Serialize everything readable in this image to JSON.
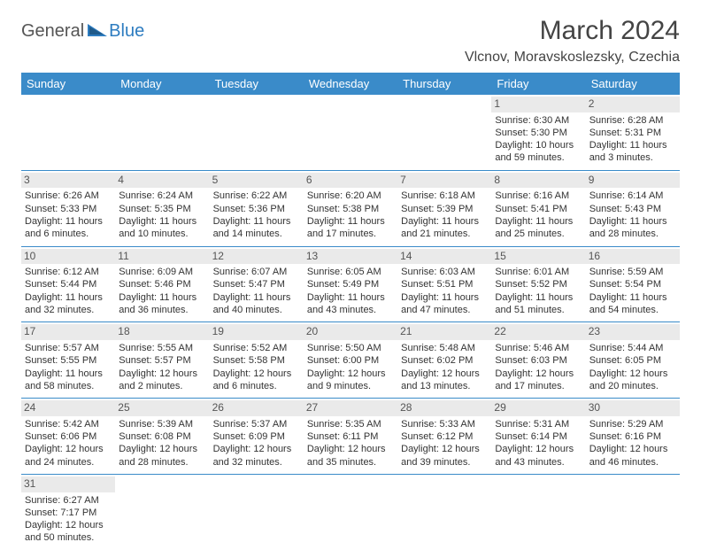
{
  "logo": {
    "text_dark": "General",
    "text_blue": "Blue"
  },
  "title": "March 2024",
  "location": "Vlcnov, Moravskoslezsky, Czechia",
  "colors": {
    "header_bg": "#3a8bc9",
    "header_fg": "#ffffff",
    "daynum_bg": "#eaeaea",
    "row_border": "#3a8bc9",
    "logo_dark": "#555555",
    "logo_blue": "#2d7cc0"
  },
  "typography": {
    "title_fontsize": 30,
    "location_fontsize": 16,
    "dayheader_fontsize": 13,
    "cell_fontsize": 11
  },
  "day_headers": [
    "Sunday",
    "Monday",
    "Tuesday",
    "Wednesday",
    "Thursday",
    "Friday",
    "Saturday"
  ],
  "weeks": [
    [
      {
        "n": "",
        "sr": "",
        "ss": "",
        "dl1": "",
        "dl2": ""
      },
      {
        "n": "",
        "sr": "",
        "ss": "",
        "dl1": "",
        "dl2": ""
      },
      {
        "n": "",
        "sr": "",
        "ss": "",
        "dl1": "",
        "dl2": ""
      },
      {
        "n": "",
        "sr": "",
        "ss": "",
        "dl1": "",
        "dl2": ""
      },
      {
        "n": "",
        "sr": "",
        "ss": "",
        "dl1": "",
        "dl2": ""
      },
      {
        "n": "1",
        "sr": "Sunrise: 6:30 AM",
        "ss": "Sunset: 5:30 PM",
        "dl1": "Daylight: 10 hours",
        "dl2": "and 59 minutes."
      },
      {
        "n": "2",
        "sr": "Sunrise: 6:28 AM",
        "ss": "Sunset: 5:31 PM",
        "dl1": "Daylight: 11 hours",
        "dl2": "and 3 minutes."
      }
    ],
    [
      {
        "n": "3",
        "sr": "Sunrise: 6:26 AM",
        "ss": "Sunset: 5:33 PM",
        "dl1": "Daylight: 11 hours",
        "dl2": "and 6 minutes."
      },
      {
        "n": "4",
        "sr": "Sunrise: 6:24 AM",
        "ss": "Sunset: 5:35 PM",
        "dl1": "Daylight: 11 hours",
        "dl2": "and 10 minutes."
      },
      {
        "n": "5",
        "sr": "Sunrise: 6:22 AM",
        "ss": "Sunset: 5:36 PM",
        "dl1": "Daylight: 11 hours",
        "dl2": "and 14 minutes."
      },
      {
        "n": "6",
        "sr": "Sunrise: 6:20 AM",
        "ss": "Sunset: 5:38 PM",
        "dl1": "Daylight: 11 hours",
        "dl2": "and 17 minutes."
      },
      {
        "n": "7",
        "sr": "Sunrise: 6:18 AM",
        "ss": "Sunset: 5:39 PM",
        "dl1": "Daylight: 11 hours",
        "dl2": "and 21 minutes."
      },
      {
        "n": "8",
        "sr": "Sunrise: 6:16 AM",
        "ss": "Sunset: 5:41 PM",
        "dl1": "Daylight: 11 hours",
        "dl2": "and 25 minutes."
      },
      {
        "n": "9",
        "sr": "Sunrise: 6:14 AM",
        "ss": "Sunset: 5:43 PM",
        "dl1": "Daylight: 11 hours",
        "dl2": "and 28 minutes."
      }
    ],
    [
      {
        "n": "10",
        "sr": "Sunrise: 6:12 AM",
        "ss": "Sunset: 5:44 PM",
        "dl1": "Daylight: 11 hours",
        "dl2": "and 32 minutes."
      },
      {
        "n": "11",
        "sr": "Sunrise: 6:09 AM",
        "ss": "Sunset: 5:46 PM",
        "dl1": "Daylight: 11 hours",
        "dl2": "and 36 minutes."
      },
      {
        "n": "12",
        "sr": "Sunrise: 6:07 AM",
        "ss": "Sunset: 5:47 PM",
        "dl1": "Daylight: 11 hours",
        "dl2": "and 40 minutes."
      },
      {
        "n": "13",
        "sr": "Sunrise: 6:05 AM",
        "ss": "Sunset: 5:49 PM",
        "dl1": "Daylight: 11 hours",
        "dl2": "and 43 minutes."
      },
      {
        "n": "14",
        "sr": "Sunrise: 6:03 AM",
        "ss": "Sunset: 5:51 PM",
        "dl1": "Daylight: 11 hours",
        "dl2": "and 47 minutes."
      },
      {
        "n": "15",
        "sr": "Sunrise: 6:01 AM",
        "ss": "Sunset: 5:52 PM",
        "dl1": "Daylight: 11 hours",
        "dl2": "and 51 minutes."
      },
      {
        "n": "16",
        "sr": "Sunrise: 5:59 AM",
        "ss": "Sunset: 5:54 PM",
        "dl1": "Daylight: 11 hours",
        "dl2": "and 54 minutes."
      }
    ],
    [
      {
        "n": "17",
        "sr": "Sunrise: 5:57 AM",
        "ss": "Sunset: 5:55 PM",
        "dl1": "Daylight: 11 hours",
        "dl2": "and 58 minutes."
      },
      {
        "n": "18",
        "sr": "Sunrise: 5:55 AM",
        "ss": "Sunset: 5:57 PM",
        "dl1": "Daylight: 12 hours",
        "dl2": "and 2 minutes."
      },
      {
        "n": "19",
        "sr": "Sunrise: 5:52 AM",
        "ss": "Sunset: 5:58 PM",
        "dl1": "Daylight: 12 hours",
        "dl2": "and 6 minutes."
      },
      {
        "n": "20",
        "sr": "Sunrise: 5:50 AM",
        "ss": "Sunset: 6:00 PM",
        "dl1": "Daylight: 12 hours",
        "dl2": "and 9 minutes."
      },
      {
        "n": "21",
        "sr": "Sunrise: 5:48 AM",
        "ss": "Sunset: 6:02 PM",
        "dl1": "Daylight: 12 hours",
        "dl2": "and 13 minutes."
      },
      {
        "n": "22",
        "sr": "Sunrise: 5:46 AM",
        "ss": "Sunset: 6:03 PM",
        "dl1": "Daylight: 12 hours",
        "dl2": "and 17 minutes."
      },
      {
        "n": "23",
        "sr": "Sunrise: 5:44 AM",
        "ss": "Sunset: 6:05 PM",
        "dl1": "Daylight: 12 hours",
        "dl2": "and 20 minutes."
      }
    ],
    [
      {
        "n": "24",
        "sr": "Sunrise: 5:42 AM",
        "ss": "Sunset: 6:06 PM",
        "dl1": "Daylight: 12 hours",
        "dl2": "and 24 minutes."
      },
      {
        "n": "25",
        "sr": "Sunrise: 5:39 AM",
        "ss": "Sunset: 6:08 PM",
        "dl1": "Daylight: 12 hours",
        "dl2": "and 28 minutes."
      },
      {
        "n": "26",
        "sr": "Sunrise: 5:37 AM",
        "ss": "Sunset: 6:09 PM",
        "dl1": "Daylight: 12 hours",
        "dl2": "and 32 minutes."
      },
      {
        "n": "27",
        "sr": "Sunrise: 5:35 AM",
        "ss": "Sunset: 6:11 PM",
        "dl1": "Daylight: 12 hours",
        "dl2": "and 35 minutes."
      },
      {
        "n": "28",
        "sr": "Sunrise: 5:33 AM",
        "ss": "Sunset: 6:12 PM",
        "dl1": "Daylight: 12 hours",
        "dl2": "and 39 minutes."
      },
      {
        "n": "29",
        "sr": "Sunrise: 5:31 AM",
        "ss": "Sunset: 6:14 PM",
        "dl1": "Daylight: 12 hours",
        "dl2": "and 43 minutes."
      },
      {
        "n": "30",
        "sr": "Sunrise: 5:29 AM",
        "ss": "Sunset: 6:16 PM",
        "dl1": "Daylight: 12 hours",
        "dl2": "and 46 minutes."
      }
    ],
    [
      {
        "n": "31",
        "sr": "Sunrise: 6:27 AM",
        "ss": "Sunset: 7:17 PM",
        "dl1": "Daylight: 12 hours",
        "dl2": "and 50 minutes."
      },
      {
        "n": "",
        "sr": "",
        "ss": "",
        "dl1": "",
        "dl2": ""
      },
      {
        "n": "",
        "sr": "",
        "ss": "",
        "dl1": "",
        "dl2": ""
      },
      {
        "n": "",
        "sr": "",
        "ss": "",
        "dl1": "",
        "dl2": ""
      },
      {
        "n": "",
        "sr": "",
        "ss": "",
        "dl1": "",
        "dl2": ""
      },
      {
        "n": "",
        "sr": "",
        "ss": "",
        "dl1": "",
        "dl2": ""
      },
      {
        "n": "",
        "sr": "",
        "ss": "",
        "dl1": "",
        "dl2": ""
      }
    ]
  ]
}
